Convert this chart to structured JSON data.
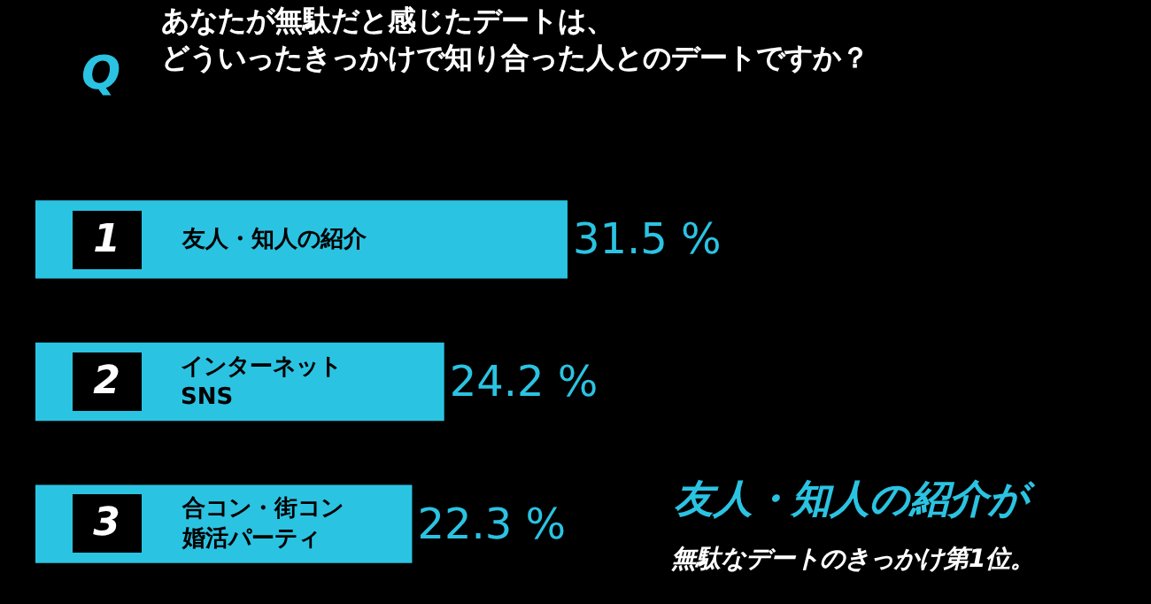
{
  "chart_data": {
    "type": "bar",
    "orientation": "horizontal",
    "title": "あなたが無駄だと感じたデートは、どういったきっかけで知り合った人とのデートですか？",
    "categories": [
      "友人・知人の紹介",
      "インターネット\nSNS",
      "合コン・街コン婚活パーティ"
    ],
    "values": [
      31.5,
      24.2,
      22.3
    ],
    "color": "#2bc3e2",
    "value_labels": [
      "31.5 %",
      "24.2 %",
      "22.3 %"
    ],
    "legend": false,
    "annotations": [
      "Q",
      "1",
      "2",
      "3",
      "友人・知人の紹介が",
      "無駄なデートのきっかけ第1位。"
    ]
  }
}
